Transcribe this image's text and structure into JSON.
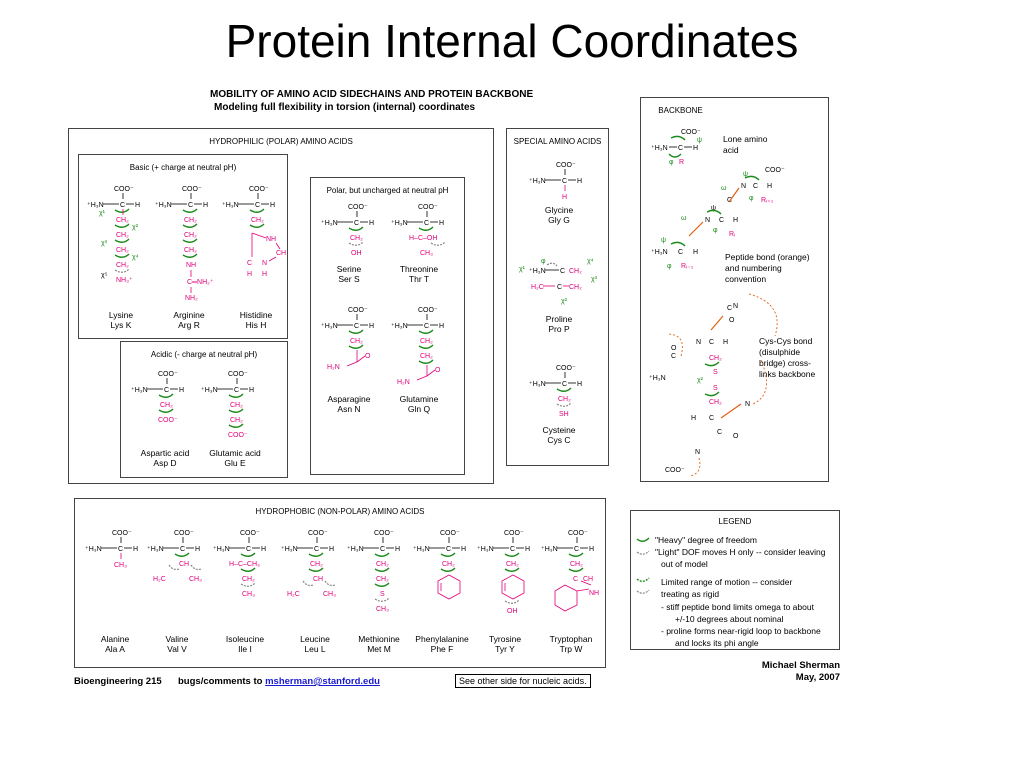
{
  "slide": {
    "title": "Protein Internal Coordinates"
  },
  "sheet": {
    "heading": "MOBILITY OF AMINO ACID SIDECHAINS AND PROTEIN BACKBONE",
    "subheading": "Modeling full flexibility in torsion (internal) coordinates"
  },
  "hydrophilic": {
    "title": "HYDROPHILIC (POLAR) AMINO ACIDS",
    "basic": {
      "title": "Basic (+ charge at neutral pH)",
      "items": [
        {
          "name": "Lysine",
          "code": "Lys K"
        },
        {
          "name": "Arginine",
          "code": "Arg R"
        },
        {
          "name": "Histidine",
          "code": "His H"
        }
      ]
    },
    "acidic": {
      "title": "Acidic (- charge at neutral pH)",
      "items": [
        {
          "name": "Aspartic acid",
          "code": "Asp D"
        },
        {
          "name": "Glutamic acid",
          "code": "Glu E"
        }
      ]
    },
    "polar": {
      "title": "Polar, but uncharged at neutral pH",
      "items": [
        {
          "name": "Serine",
          "code": "Ser S"
        },
        {
          "name": "Threonine",
          "code": "Thr T"
        },
        {
          "name": "Asparagine",
          "code": "Asn N"
        },
        {
          "name": "Glutamine",
          "code": "Gln Q"
        }
      ]
    }
  },
  "special": {
    "title": "SPECIAL AMINO ACIDS",
    "items": [
      {
        "name": "Glycine",
        "code": "Gly G"
      },
      {
        "name": "Proline",
        "code": "Pro P"
      },
      {
        "name": "Cysteine",
        "code": "Cys C"
      }
    ]
  },
  "backbone": {
    "title": "BACKBONE",
    "lone": [
      "Lone amino",
      "acid"
    ],
    "peptide": [
      "Peptide bond (orange)",
      "and numbering",
      "convention"
    ],
    "cys": [
      "Cys-Cys bond",
      "(disulphide",
      "bridge) cross-",
      "links backbone"
    ]
  },
  "hydrophobic": {
    "title": "HYDROPHOBIC (NON-POLAR) AMINO ACIDS",
    "items": [
      {
        "name": "Alanine",
        "code": "Ala A"
      },
      {
        "name": "Valine",
        "code": "Val V"
      },
      {
        "name": "Isoleucine",
        "code": "Ile I"
      },
      {
        "name": "Leucine",
        "code": "Leu L"
      },
      {
        "name": "Methionine",
        "code": "Met M"
      },
      {
        "name": "Phenylalanine",
        "code": "Phe F"
      },
      {
        "name": "Tyrosine",
        "code": "Tyr Y"
      },
      {
        "name": "Tryptophan",
        "code": "Trp W"
      }
    ]
  },
  "legend": {
    "title": "LEGEND",
    "lines": [
      "\"Heavy\" degree of freedom",
      "\"Light\" DOF moves H only -- consider leaving",
      "out of model",
      "Limited range of motion -- consider",
      "treating as rigid",
      "- stiff peptide bond limits omega to about",
      "+/-10 degrees about nominal",
      "- proline forms near-rigid loop to backbone",
      "and locks its phi angle"
    ]
  },
  "footer": {
    "course": "Bioengineering 215",
    "bugs": "bugs/comments to",
    "email": "msherman@stanford.edu",
    "see_other": "See other side for nucleic acids.",
    "author": "Michael Sherman",
    "date": "May, 2007"
  },
  "chem": {
    "coo": "COO⁻",
    "h3n": "⁺H₃N",
    "c": "C",
    "h": "H",
    "ch2": "CH₂",
    "ch3": "CH₃",
    "nh": "NH",
    "nh2": "NH₂",
    "nh3": "NH₃⁺",
    "cnh2": "C═NH₂⁺",
    "oh": "OH",
    "sh": "SH",
    "s": "S",
    "h2n": "H₂N",
    "o": "O",
    "n": "N",
    "ch": "CH",
    "hc": "H₂C",
    "hcoh": "H–C–OH",
    "hcch3": "H–C–CH₃",
    "cooneg": "COO⁻",
    "phi": "φ",
    "psi": "ψ",
    "omega": "ω",
    "chi1": "χ¹",
    "chi2": "χ²",
    "chi3": "χ³",
    "chi4": "χ⁴",
    "chi5": "χ⁵",
    "r": "R",
    "ri": "Rᵢ",
    "rim1": "Rᵢ₋₁",
    "rip1": "Rᵢ₊₁"
  }
}
